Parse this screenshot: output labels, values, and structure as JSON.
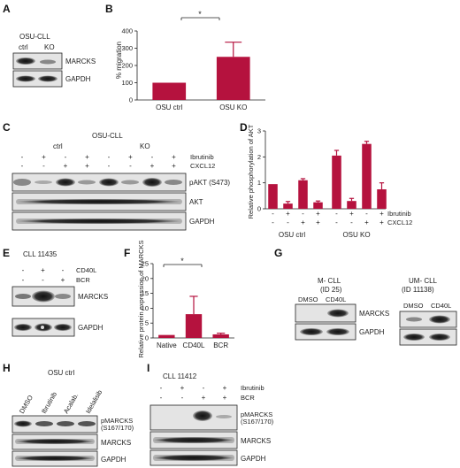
{
  "panels": {
    "A": {
      "letter": "A",
      "cell_line": "OSU-CLL",
      "lanes": [
        "ctrl",
        "KO"
      ],
      "bands": [
        "MARCKS",
        "GAPDH"
      ]
    },
    "B": {
      "letter": "B",
      "significance": "*",
      "chart_data": {
        "type": "bar",
        "categories": [
          "OSU ctrl",
          "OSU KO"
        ],
        "values": [
          100,
          250
        ],
        "errors": [
          0,
          85
        ],
        "ylabel": "% migration",
        "yticks": [
          "0",
          "100",
          "200",
          "300",
          "400"
        ],
        "ylim": [
          0,
          400
        ],
        "bar_color": "#b5123e"
      }
    },
    "C": {
      "letter": "C",
      "cell_line": "OSU-CLL",
      "groups": [
        "ctrl",
        "KO"
      ],
      "treatments": [
        {
          "name": "Ibrutinib",
          "signs": [
            "-",
            "+",
            "-",
            "+",
            "-",
            "+",
            "-",
            "+"
          ]
        },
        {
          "name": "CXCL12",
          "signs": [
            "-",
            "-",
            "+",
            "+",
            "-",
            "-",
            "+",
            "+"
          ]
        }
      ],
      "bands": [
        "pAKT (S473)",
        "AKT",
        "GAPDH"
      ]
    },
    "D": {
      "letter": "D",
      "chart_data": {
        "type": "bar",
        "values": [
          0.95,
          0.2,
          1.1,
          0.25,
          2.05,
          0.3,
          2.5,
          0.75
        ],
        "errors": [
          0,
          0.08,
          0.06,
          0.05,
          0.2,
          0.1,
          0.1,
          0.25
        ],
        "ylabel": "Relative phosphorylation of AKT",
        "yticks": [
          "0",
          "1",
          "2",
          "3"
        ],
        "ylim": [
          0,
          3
        ],
        "groups": [
          "OSU ctrl",
          "OSU KO"
        ],
        "treatments": [
          {
            "name": "Ibrutinib",
            "signs": [
              "-",
              "+",
              "-",
              "+",
              "-",
              "+",
              "-",
              "+"
            ]
          },
          {
            "name": "CXCL12",
            "signs": [
              "-",
              "-",
              "+",
              "+",
              "-",
              "-",
              "+",
              "+"
            ]
          }
        ],
        "bar_color": "#b5123e"
      }
    },
    "E": {
      "letter": "E",
      "sample": "CLL 11435",
      "treatments": [
        {
          "name": "CD40L",
          "signs": [
            "-",
            "+",
            "-"
          ]
        },
        {
          "name": "BCR",
          "signs": [
            "-",
            "-",
            "+"
          ]
        }
      ],
      "bands": [
        "MARCKS",
        "GAPDH"
      ]
    },
    "F": {
      "letter": "F",
      "significance": "*",
      "chart_data": {
        "type": "bar",
        "categories": [
          "Native",
          "CD40L",
          "BCR"
        ],
        "values": [
          1,
          8,
          1.2
        ],
        "errors": [
          0,
          6,
          0.4
        ],
        "ylabel": "Relative protein expression of MARCKS",
        "yticks": [
          "0",
          "5",
          "10",
          "15",
          "20",
          "25"
        ],
        "ylim": [
          0,
          25
        ],
        "bar_color": "#b5123e"
      }
    },
    "G": {
      "letter": "G",
      "left": {
        "title": "M- CLL",
        "id": "(ID 25)",
        "lanes": [
          "DMSO",
          "CD40L"
        ],
        "bands": [
          "MARCKS",
          "GAPDH"
        ]
      },
      "right": {
        "title": "UM- CLL",
        "id": "(ID 11138)",
        "lanes": [
          "DMSO",
          "CD40L"
        ]
      }
    },
    "H": {
      "letter": "H",
      "cell_line": "OSU ctrl",
      "lanes": [
        "DMSO",
        "Ibrutinib",
        "Acalab.",
        "Idelalisib"
      ],
      "bands": [
        "pMARCKS",
        "(S167/170)",
        "MARCKS",
        "GAPDH"
      ]
    },
    "I": {
      "letter": "I",
      "sample": "CLL 11412",
      "treatments": [
        {
          "name": "Ibrutinib",
          "signs": [
            "-",
            "+",
            "-",
            "+"
          ]
        },
        {
          "name": "BCR",
          "signs": [
            "-",
            "-",
            "+",
            "+"
          ]
        }
      ],
      "bands": [
        "pMARCKS",
        "(S167/170)",
        "MARCKS",
        "GAPDH"
      ]
    }
  }
}
